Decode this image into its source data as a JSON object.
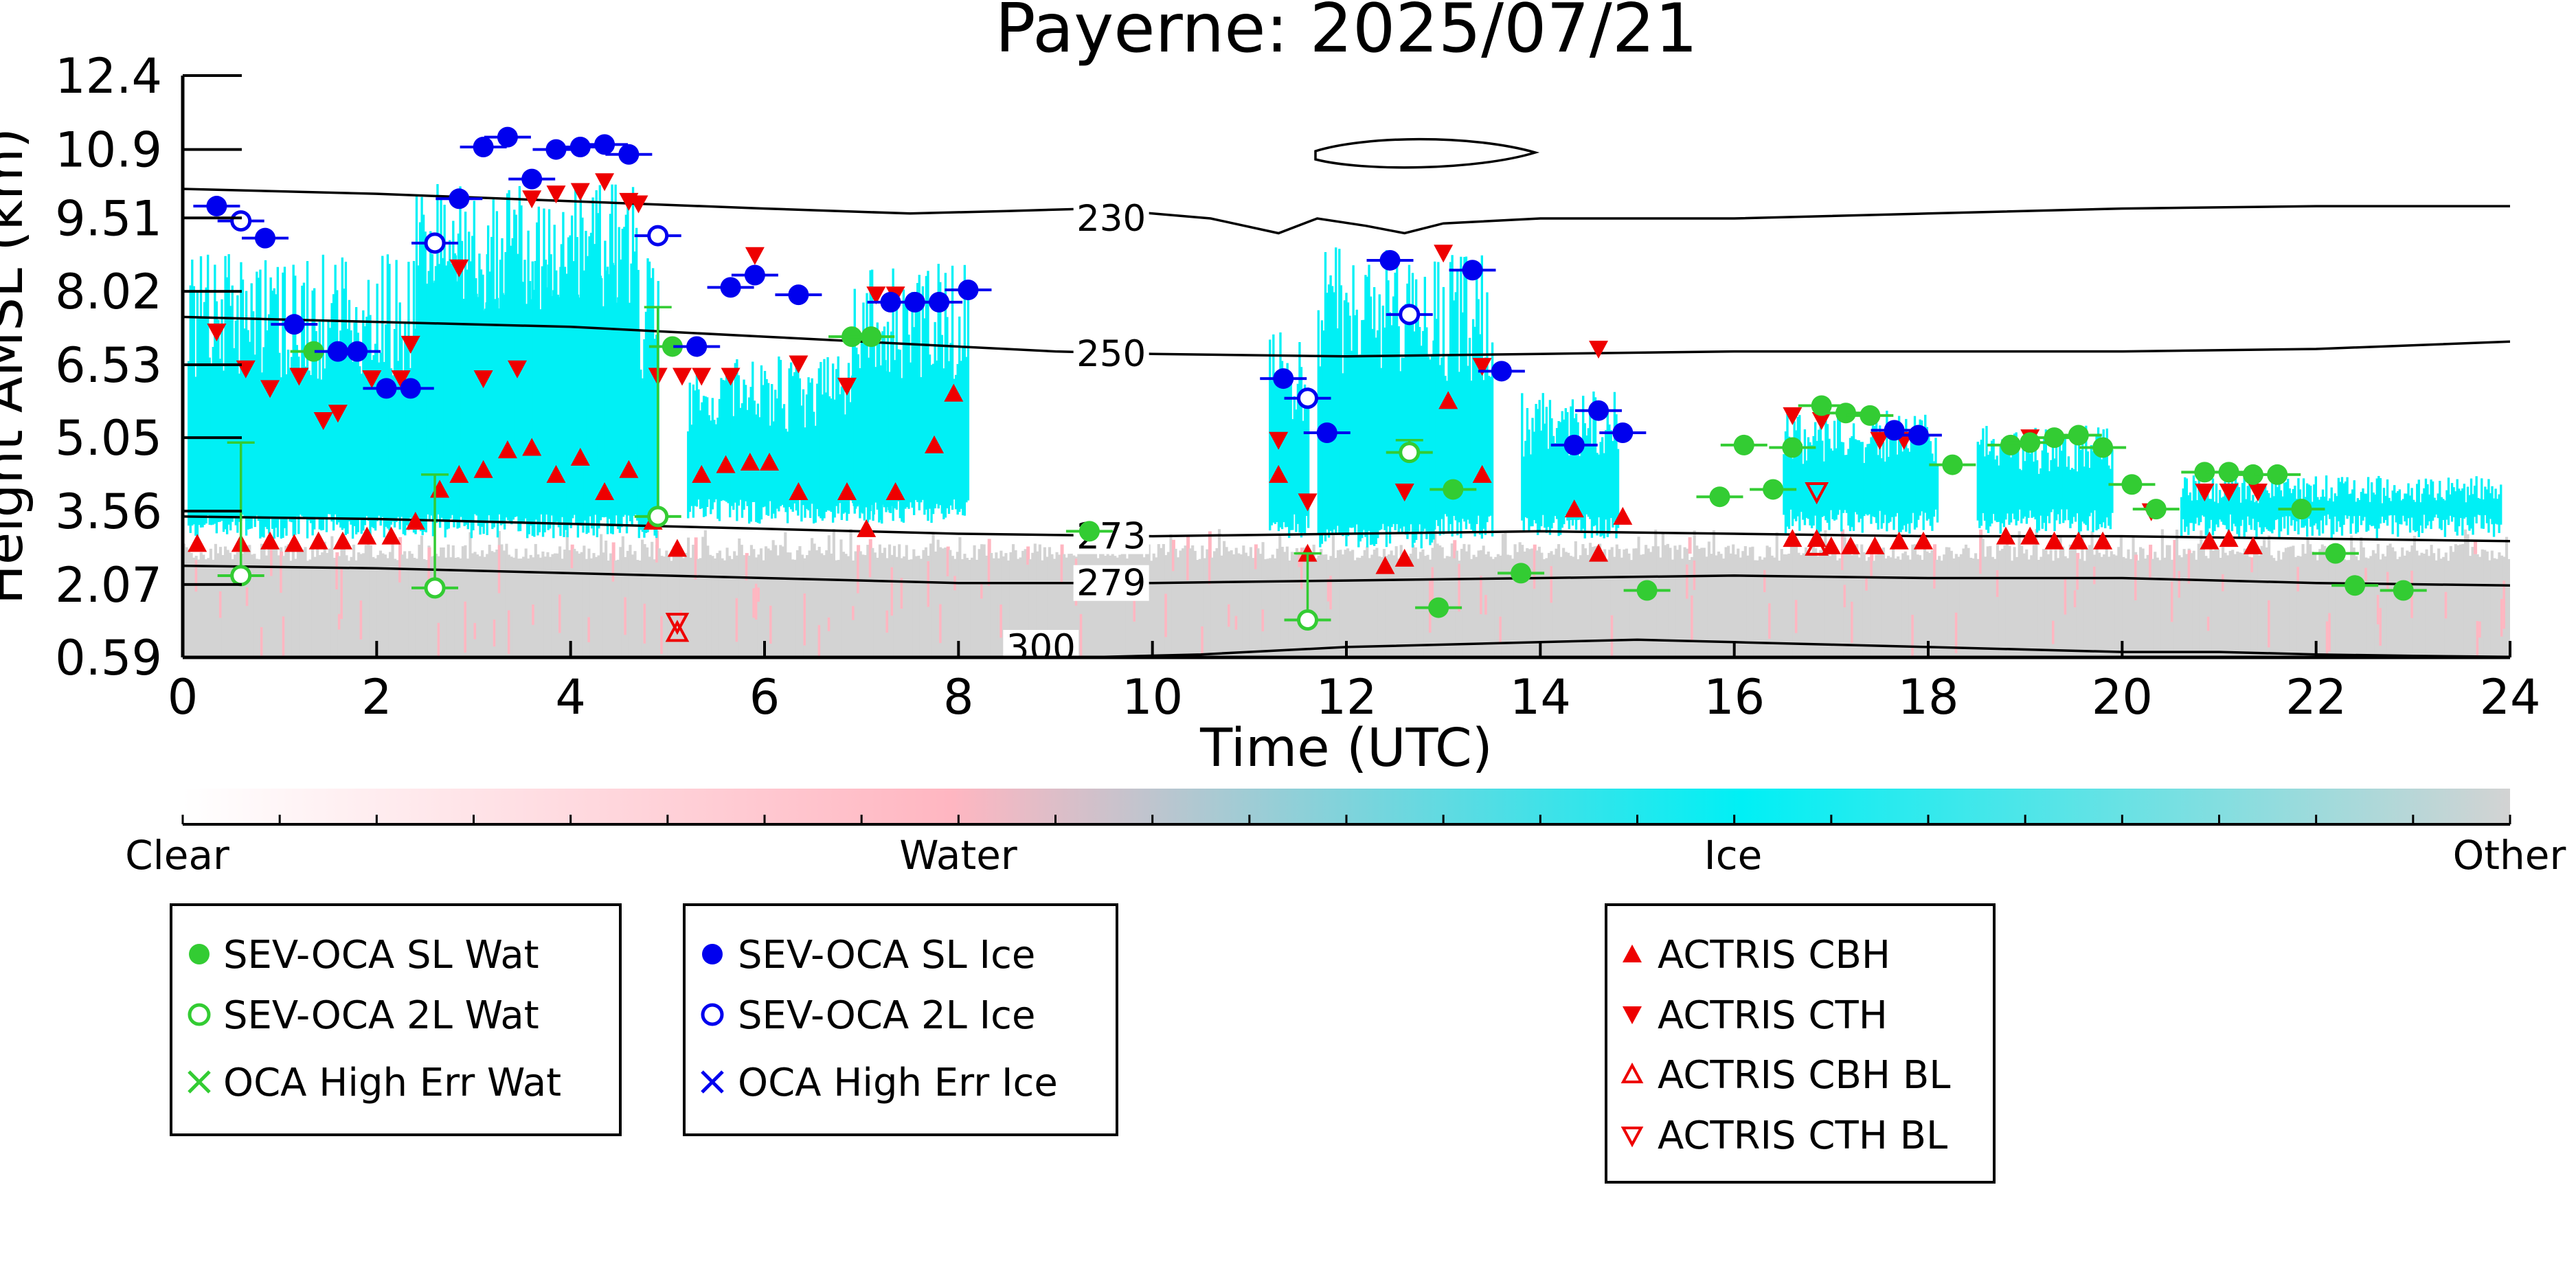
{
  "chart_data": {
    "type": "scatter",
    "title": "Payerne: 2025/07/21",
    "xlabel": "Time (UTC)",
    "ylabel": "Height AMSL (km)",
    "xlim": [
      0,
      24
    ],
    "ylim": [
      0.59,
      12.4
    ],
    "x_ticks": [
      "0",
      "2",
      "4",
      "6",
      "8",
      "10",
      "12",
      "14",
      "16",
      "18",
      "20",
      "22",
      "24"
    ],
    "y_ticks": [
      "0.59",
      "2.07",
      "3.56",
      "5.05",
      "6.53",
      "8.02",
      "9.51",
      "10.9",
      "12.4"
    ],
    "colorbar": {
      "labels": [
        "Clear",
        "Water",
        "Ice",
        "Other"
      ],
      "colors": [
        "#ffffff",
        "#ffb6c1",
        "#00f0f5",
        "#d3d3d3"
      ]
    },
    "colors": {
      "water": "#33cc33",
      "ice": "#0000ee",
      "actris": "#ee0000",
      "ice_mask": "#00f0f5",
      "other_mask": "#d3d3d3",
      "water_mask": "#ffb6c1"
    },
    "background_mask": {
      "ice_regions": [
        {
          "t": [
            0.05,
            4.9
          ],
          "base": 3.0,
          "top": 8.8
        },
        {
          "t": [
            2.4,
            4.7
          ],
          "base": 4.5,
          "top": 10.2
        },
        {
          "t": [
            5.2,
            7.3
          ],
          "base": 3.3,
          "top": 6.7
        },
        {
          "t": [
            6.9,
            8.1
          ],
          "base": 3.3,
          "top": 8.6
        },
        {
          "t": [
            11.2,
            11.6
          ],
          "base": 3.0,
          "top": 7.3
        },
        {
          "t": [
            11.7,
            12.9
          ],
          "base": 2.8,
          "top": 9.0
        },
        {
          "t": [
            12.9,
            13.5
          ],
          "base": 3.0,
          "top": 8.8
        },
        {
          "t": [
            13.8,
            14.8
          ],
          "base": 3.0,
          "top": 6.0
        },
        {
          "t": [
            16.5,
            18.1
          ],
          "base": 3.1,
          "top": 5.6
        },
        {
          "t": [
            18.5,
            19.9
          ],
          "base": 3.1,
          "top": 5.3
        },
        {
          "t": [
            20.6,
            23.9
          ],
          "base": 3.0,
          "top": 4.3
        }
      ],
      "other_band": {
        "top": 2.9
      }
    },
    "contours": [
      {
        "label": "230",
        "x": [
          0,
          2,
          4,
          6,
          7.5,
          8.5,
          9.4,
          10.6,
          11.3,
          11.7,
          12.2,
          12.6,
          13,
          14,
          16,
          18,
          20,
          22,
          24
        ],
        "y": [
          10.1,
          10.0,
          9.85,
          9.7,
          9.6,
          9.65,
          9.7,
          9.5,
          9.2,
          9.5,
          9.35,
          9.2,
          9.4,
          9.5,
          9.5,
          9.6,
          9.7,
          9.75,
          9.75
        ]
      },
      {
        "label": "250",
        "x": [
          0,
          2,
          4,
          6,
          8,
          9,
          10,
          12,
          14,
          16,
          18,
          20,
          22,
          24
        ],
        "y": [
          7.5,
          7.4,
          7.3,
          7.1,
          6.9,
          6.8,
          6.75,
          6.7,
          6.75,
          6.8,
          6.8,
          6.8,
          6.85,
          7.0
        ]
      },
      {
        "label": "273",
        "x": [
          0,
          2,
          4,
          6,
          8,
          10,
          12,
          14,
          16,
          18,
          20,
          22,
          24
        ],
        "y": [
          3.45,
          3.4,
          3.3,
          3.2,
          3.1,
          3.05,
          3.1,
          3.15,
          3.1,
          3.05,
          3.05,
          3.0,
          2.95
        ]
      },
      {
        "label": "279",
        "x": [
          0,
          2,
          4,
          6,
          8,
          10,
          12,
          14,
          16,
          18,
          20,
          22,
          24
        ],
        "y": [
          2.45,
          2.4,
          2.3,
          2.2,
          2.1,
          2.1,
          2.15,
          2.2,
          2.25,
          2.2,
          2.2,
          2.1,
          2.05
        ]
      },
      {
        "label": "300",
        "x": [
          8.6,
          9.5,
          10.5,
          12,
          14,
          15,
          16,
          17,
          18,
          19,
          20,
          21,
          22,
          23,
          24
        ],
        "y": [
          0.59,
          0.6,
          0.65,
          0.8,
          0.9,
          0.95,
          0.9,
          0.85,
          0.8,
          0.75,
          0.7,
          0.7,
          0.65,
          0.62,
          0.6
        ]
      }
    ],
    "sev_oca_sl_water": {
      "x": [
        1.35,
        5.05,
        6.9,
        7.1,
        9.35,
        12.95,
        13.1,
        13.8,
        15.1,
        15.85,
        16.1,
        16.4,
        16.6,
        16.9,
        17.15,
        17.4,
        18.25,
        18.85,
        19.05,
        19.3,
        19.55,
        19.8,
        20.1,
        20.35,
        20.85,
        21.1,
        21.35,
        21.6,
        21.85,
        22.2,
        22.4,
        22.9
      ],
      "y": [
        6.8,
        6.9,
        7.1,
        7.1,
        3.15,
        1.6,
        4.0,
        2.3,
        1.95,
        3.85,
        4.9,
        4.0,
        4.85,
        5.7,
        5.55,
        5.5,
        4.5,
        4.9,
        4.95,
        5.05,
        5.1,
        4.85,
        4.1,
        3.6,
        4.35,
        4.35,
        4.3,
        4.3,
        3.6,
        2.7,
        2.05,
        1.95
      ]
    },
    "sev_oca_2l_water": {
      "x": [
        0.6,
        2.6,
        4.9,
        11.6,
        12.65
      ],
      "y": [
        2.25,
        2.0,
        3.45,
        1.35,
        4.75
      ]
    },
    "sev_oca_sl_ice": {
      "x": [
        0.35,
        0.85,
        1.15,
        1.6,
        1.8,
        2.1,
        2.35,
        2.85,
        3.1,
        3.35,
        3.6,
        3.85,
        4.1,
        4.35,
        4.6,
        5.3,
        5.65,
        5.9,
        6.35,
        7.3,
        7.55,
        7.8,
        8.1,
        11.35,
        11.8,
        12.45,
        13.3,
        13.6,
        14.35,
        14.6,
        14.85,
        17.65,
        17.9
      ],
      "y": [
        9.75,
        9.1,
        7.35,
        6.8,
        6.8,
        6.05,
        6.05,
        9.9,
        10.95,
        11.15,
        10.3,
        10.9,
        10.95,
        11.0,
        10.8,
        6.9,
        8.1,
        8.35,
        7.95,
        7.8,
        7.8,
        7.8,
        8.05,
        6.25,
        5.15,
        8.65,
        8.45,
        6.4,
        4.9,
        5.6,
        5.15,
        5.2,
        5.1
      ]
    },
    "sev_oca_2l_ice": {
      "x": [
        0.6,
        2.6,
        4.9,
        11.6,
        12.65
      ],
      "y": [
        9.45,
        9.0,
        9.15,
        5.85,
        7.55
      ]
    },
    "oca_high_err_water": {
      "x": [],
      "y": []
    },
    "oca_high_err_ice": {
      "x": [],
      "y": []
    },
    "actris_cbh": {
      "x": [
        0.15,
        0.6,
        0.9,
        1.15,
        1.4,
        1.65,
        1.9,
        2.15,
        2.4,
        2.65,
        2.85,
        3.1,
        3.35,
        3.6,
        3.85,
        4.1,
        4.35,
        4.6,
        4.85,
        5.1,
        5.35,
        5.6,
        5.85,
        6.05,
        6.35,
        6.85,
        7.05,
        7.35,
        7.75,
        7.95,
        11.3,
        11.6,
        12.4,
        12.6,
        13.05,
        13.4,
        14.35,
        14.6,
        14.85,
        16.6,
        16.85,
        17.0,
        17.2,
        17.45,
        17.7,
        17.95,
        18.8,
        19.05,
        19.3,
        19.55,
        19.8,
        20.9,
        21.1,
        21.35
      ],
      "y": [
        2.9,
        2.9,
        2.95,
        2.9,
        2.95,
        2.95,
        3.05,
        3.05,
        3.35,
        4.0,
        4.3,
        4.4,
        4.8,
        4.85,
        4.3,
        4.65,
        3.95,
        4.4,
        3.35,
        2.8,
        4.3,
        4.5,
        4.55,
        4.55,
        3.95,
        3.95,
        3.2,
        3.95,
        4.9,
        5.95,
        4.3,
        2.7,
        2.45,
        2.6,
        5.8,
        4.3,
        3.6,
        2.7,
        3.45,
        3.0,
        3.0,
        2.85,
        2.85,
        2.85,
        2.95,
        2.95,
        3.05,
        3.05,
        2.95,
        2.95,
        2.95,
        2.95,
        3.0,
        2.85
      ]
    },
    "actris_cth": {
      "x": [
        0.35,
        0.65,
        0.9,
        1.2,
        1.45,
        1.6,
        1.95,
        2.25,
        2.35,
        2.85,
        3.1,
        3.45,
        3.6,
        3.85,
        4.1,
        4.35,
        4.6,
        4.7,
        4.9,
        5.15,
        5.35,
        5.65,
        5.9,
        6.35,
        6.85,
        7.15,
        7.35,
        11.3,
        11.6,
        12.6,
        13.0,
        13.4,
        14.6,
        16.6,
        16.9,
        17.5,
        17.75,
        19.05,
        20.3,
        20.85,
        21.1,
        21.4
      ],
      "y": [
        7.2,
        6.45,
        6.05,
        6.3,
        5.4,
        5.55,
        6.25,
        6.25,
        6.95,
        8.5,
        6.25,
        6.45,
        9.9,
        10.0,
        10.05,
        10.25,
        9.85,
        9.8,
        6.3,
        6.3,
        6.3,
        6.3,
        8.75,
        6.55,
        6.1,
        7.95,
        7.95,
        5.0,
        3.75,
        3.95,
        8.8,
        6.5,
        6.85,
        5.5,
        5.4,
        5.0,
        5.0,
        5.05,
        3.55,
        3.95,
        3.95,
        3.95
      ]
    },
    "actris_cbh_bl": {
      "x": [
        5.1,
        16.85
      ],
      "y": [
        1.1,
        2.85
      ]
    },
    "actris_cth_bl": {
      "x": [
        5.1,
        16.85
      ],
      "y": [
        1.3,
        3.95
      ]
    },
    "legend": {
      "box1": [
        "SEV-OCA SL Wat",
        "SEV-OCA 2L Wat",
        "OCA High Err Wat"
      ],
      "box2": [
        "SEV-OCA SL Ice",
        "SEV-OCA 2L Ice",
        "OCA High Err Ice"
      ],
      "box3": [
        "ACTRIS CBH",
        "ACTRIS CTH",
        "ACTRIS CBH BL",
        "ACTRIS CTH BL"
      ]
    }
  }
}
